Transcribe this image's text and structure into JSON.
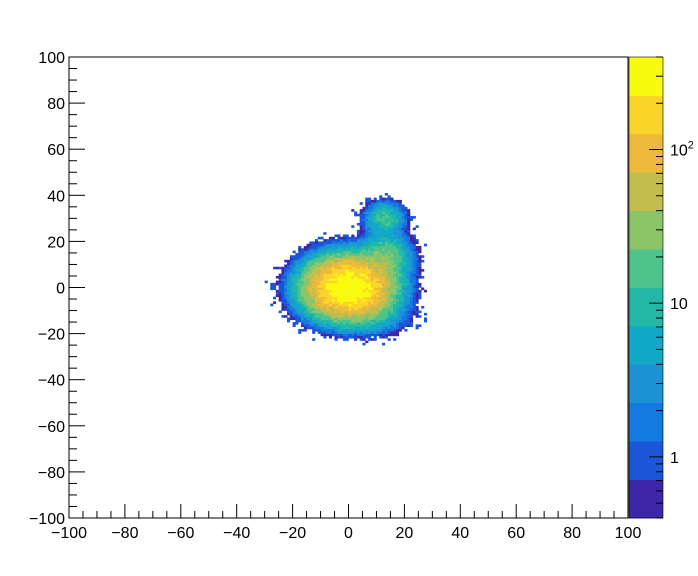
{
  "chart_data": {
    "type": "heatmap",
    "title": "",
    "xlabel": "",
    "ylabel": "",
    "xlim": [
      -100,
      100
    ],
    "ylim": [
      -100,
      100
    ],
    "x_ticks": [
      "−100",
      "−80",
      "−60",
      "−40",
      "−20",
      "0",
      "20",
      "40",
      "60",
      "80",
      "100"
    ],
    "y_ticks": [
      "−100",
      "−80",
      "−60",
      "−40",
      "−20",
      "0",
      "20",
      "40",
      "60",
      "80",
      "100"
    ],
    "bins": 200,
    "z_scale": "log",
    "z_range": [
      0.4,
      400
    ],
    "colorbar_labels": [
      {
        "value": 1,
        "label": "1"
      },
      {
        "value": 10,
        "label": "10"
      },
      {
        "value": 100,
        "label": "10",
        "sup": "2"
      }
    ],
    "palette": [
      "#3e26a8",
      "#1b55d8",
      "#1479e0",
      "#1d93d6",
      "#12a8c8",
      "#21b8a6",
      "#4ec38b",
      "#8cc46a",
      "#c2bd4c",
      "#efba3b",
      "#fbd42a",
      "#f9fb0e"
    ],
    "grid": false,
    "clusters": [
      {
        "name": "",
        "center": [
          0,
          0
        ],
        "sigma": [
          7,
          6
        ],
        "peak": 400
      },
      {
        "name": "",
        "center": [
          13,
          13
        ],
        "sigma": [
          4.5,
          5
        ],
        "peak": 25
      },
      {
        "name": "",
        "center": [
          13,
          30
        ],
        "sigma": [
          3.5,
          3.5
        ],
        "peak": 15
      },
      {
        "name": "",
        "center": [
          9,
          -12
        ],
        "sigma": [
          6,
          4
        ],
        "peak": 6
      }
    ]
  }
}
